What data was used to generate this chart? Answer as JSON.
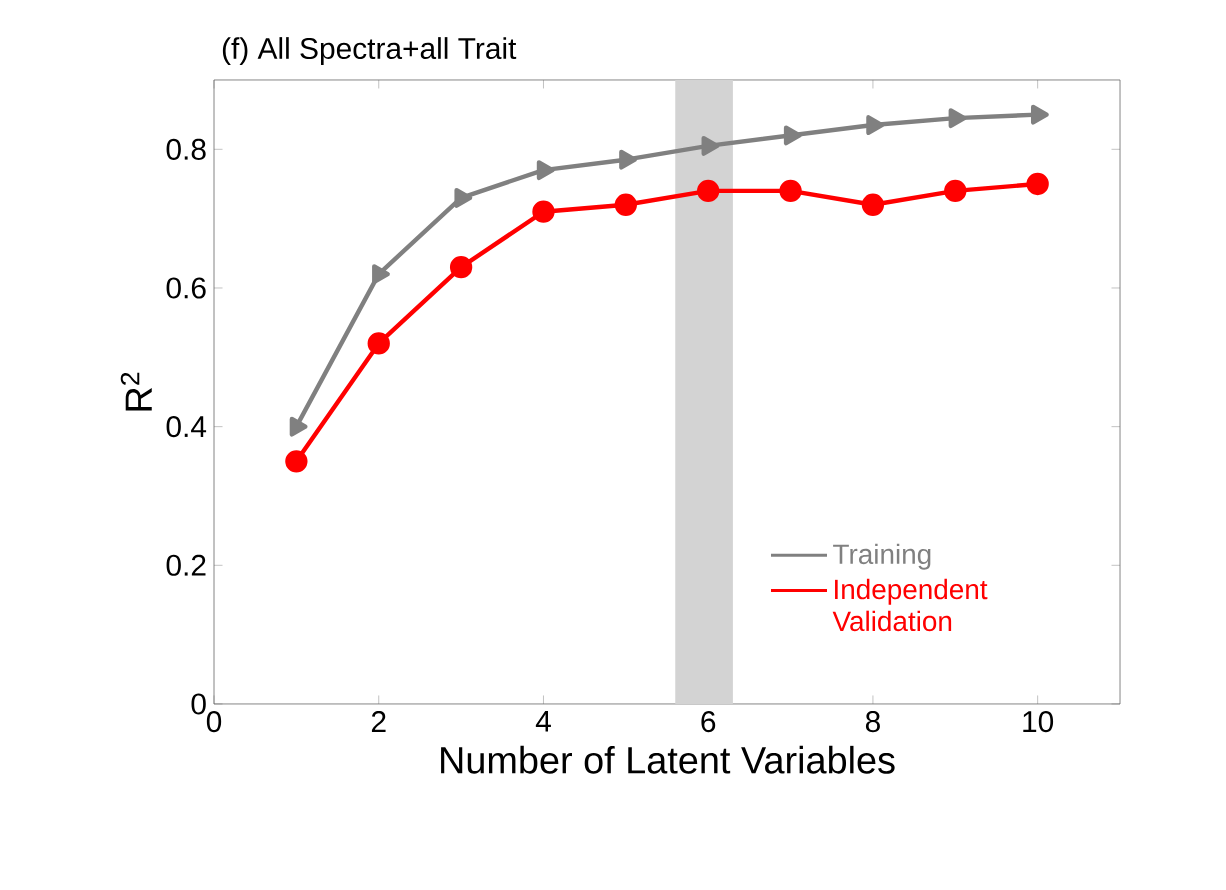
{
  "chart_data": {
    "type": "line",
    "title": "(f) All Spectra+all Trait",
    "xlabel": "Number of Latent Variables",
    "ylabel": "R$^{2}$",
    "x": [
      1,
      2,
      3,
      4,
      5,
      6,
      7,
      8,
      9,
      10
    ],
    "series": [
      {
        "name": "Training",
        "color": "#808080",
        "marker": "triangle",
        "values": [
          0.4,
          0.62,
          0.73,
          0.77,
          0.785,
          0.805,
          0.82,
          0.835,
          0.845,
          0.85
        ]
      },
      {
        "name": "Independent Validation",
        "color": "#ff0000",
        "marker": "circle",
        "values": [
          0.35,
          0.52,
          0.63,
          0.71,
          0.72,
          0.74,
          0.74,
          0.72,
          0.74,
          0.75
        ]
      }
    ],
    "bands": [
      {
        "axis": "x",
        "from": 5.6,
        "to": 6.3,
        "color": "#d3d3d3"
      }
    ],
    "xlim": [
      0,
      11
    ],
    "ylim": [
      0,
      0.9
    ],
    "xticks": [
      0,
      2,
      4,
      6,
      8,
      10
    ],
    "yticks": [
      0,
      0.2,
      0.4,
      0.6,
      0.8
    ],
    "grid": false,
    "legend": "bottom right",
    "line_style": "solid"
  }
}
